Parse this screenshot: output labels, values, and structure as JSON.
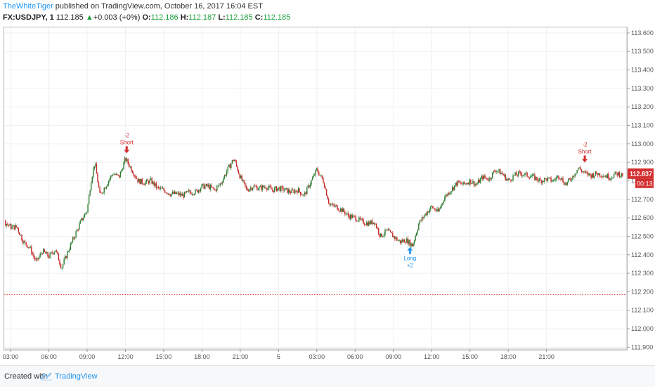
{
  "header": {
    "author": "TheWhiteTiger",
    "published_text": "published on TradingView.com, October 16, 2017 16:04 EST",
    "symbol": "FX:USDJPY, 1",
    "last": "112.185",
    "change_arrow": "▲",
    "change": "+0.003 (+0%)",
    "o_label": "O:",
    "o_value": "112.186",
    "h_label": "H:",
    "h_value": "112.187",
    "l_label": "L:",
    "l_value": "112.185",
    "c_label": "C:",
    "c_value": "112.185"
  },
  "footer": {
    "created_with": "Created with",
    "brand": "TradingView",
    "brand_icon": "tradingview-logo-icon"
  },
  "chart_data": {
    "type": "candlestick",
    "y_ticks": [
      "113.600",
      "113.500",
      "113.400",
      "113.300",
      "113.200",
      "113.100",
      "113.000",
      "112.900",
      "112.800",
      "112.700",
      "112.600",
      "112.500",
      "112.400",
      "112.300",
      "112.200",
      "112.100",
      "112.000",
      "111.900"
    ],
    "x_ticks": [
      "03:00",
      "06:00",
      "09:00",
      "12:00",
      "15:00",
      "18:00",
      "21:00",
      "5",
      "03:00",
      "06:00",
      "09:00",
      "12:00",
      "15:00",
      "18:00",
      "21:00"
    ],
    "ylim": [
      111.89,
      113.63
    ],
    "price_line": {
      "value": "112.837",
      "label": "112.837",
      "countdown": "00:13",
      "color": "#d32f2f"
    },
    "dotted_line": {
      "value": 112.185,
      "color": "#e53935"
    },
    "path": [
      [
        0,
        112.5
      ],
      [
        0.5,
        112.58
      ],
      [
        1.0,
        112.64
      ],
      [
        1.5,
        112.57
      ],
      [
        2.0,
        112.55
      ],
      [
        2.5,
        112.58
      ],
      [
        3.0,
        112.55
      ],
      [
        3.5,
        112.55
      ],
      [
        4.0,
        112.47
      ],
      [
        4.5,
        112.44
      ],
      [
        5.0,
        112.36
      ],
      [
        5.5,
        112.42
      ],
      [
        6.0,
        112.39
      ],
      [
        6.5,
        112.43
      ],
      [
        7.0,
        112.33
      ],
      [
        7.5,
        112.42
      ],
      [
        8.0,
        112.5
      ],
      [
        8.5,
        112.58
      ],
      [
        9.0,
        112.64
      ],
      [
        9.3,
        112.8
      ],
      [
        9.6,
        112.9
      ],
      [
        10.0,
        112.72
      ],
      [
        10.5,
        112.78
      ],
      [
        11.0,
        112.84
      ],
      [
        11.5,
        112.82
      ],
      [
        12.0,
        112.92
      ],
      [
        12.5,
        112.86
      ],
      [
        13.0,
        112.8
      ],
      [
        13.5,
        112.79
      ],
      [
        14.0,
        112.8
      ],
      [
        14.5,
        112.76
      ],
      [
        15.0,
        112.75
      ],
      [
        15.5,
        112.73
      ],
      [
        16.0,
        112.73
      ],
      [
        16.5,
        112.72
      ],
      [
        17.0,
        112.74
      ],
      [
        17.5,
        112.74
      ],
      [
        18.0,
        112.77
      ],
      [
        18.5,
        112.77
      ],
      [
        19.0,
        112.75
      ],
      [
        19.5,
        112.79
      ],
      [
        20.0,
        112.86
      ],
      [
        20.5,
        112.92
      ],
      [
        21.0,
        112.82
      ],
      [
        21.5,
        112.75
      ],
      [
        22.0,
        112.77
      ],
      [
        22.5,
        112.76
      ],
      [
        23.0,
        112.77
      ],
      [
        23.5,
        112.75
      ],
      [
        24.0,
        112.76
      ],
      [
        24.5,
        112.75
      ],
      [
        25.0,
        112.74
      ],
      [
        25.5,
        112.75
      ],
      [
        26.0,
        112.72
      ],
      [
        26.5,
        112.79
      ],
      [
        27.0,
        112.86
      ],
      [
        27.5,
        112.8
      ],
      [
        28.0,
        112.67
      ],
      [
        28.5,
        112.66
      ],
      [
        29.0,
        112.64
      ],
      [
        29.5,
        112.61
      ],
      [
        30.0,
        112.6
      ],
      [
        30.5,
        112.58
      ],
      [
        31.0,
        112.57
      ],
      [
        31.5,
        112.58
      ],
      [
        32.0,
        112.5
      ],
      [
        32.5,
        112.53
      ],
      [
        33.0,
        112.5
      ],
      [
        33.5,
        112.47
      ],
      [
        34.0,
        112.48
      ],
      [
        34.5,
        112.45
      ],
      [
        35.0,
        112.57
      ],
      [
        35.5,
        112.62
      ],
      [
        36.0,
        112.66
      ],
      [
        36.5,
        112.63
      ],
      [
        37.0,
        112.71
      ],
      [
        37.5,
        112.75
      ],
      [
        38.0,
        112.79
      ],
      [
        38.5,
        112.78
      ],
      [
        39.0,
        112.8
      ],
      [
        39.5,
        112.78
      ],
      [
        40.0,
        112.82
      ],
      [
        40.5,
        112.81
      ],
      [
        41.0,
        112.86
      ],
      [
        41.5,
        112.84
      ],
      [
        42.0,
        112.8
      ],
      [
        42.5,
        112.83
      ],
      [
        43.0,
        112.84
      ],
      [
        43.5,
        112.83
      ],
      [
        44.0,
        112.82
      ],
      [
        44.5,
        112.8
      ],
      [
        45.0,
        112.81
      ],
      [
        45.5,
        112.8
      ],
      [
        46.0,
        112.83
      ],
      [
        46.5,
        112.78
      ],
      [
        47.0,
        112.82
      ],
      [
        47.5,
        112.87
      ],
      [
        48.0,
        112.84
      ],
      [
        48.5,
        112.83
      ],
      [
        49.0,
        112.84
      ],
      [
        49.5,
        112.83
      ],
      [
        50.0,
        112.82
      ],
      [
        50.5,
        112.84
      ],
      [
        51.0,
        112.83
      ]
    ],
    "signals": [
      {
        "kind": "short",
        "label": "Short",
        "value_text": "-2",
        "hour": 12.1,
        "price": 112.93,
        "color": "#d32f2f"
      },
      {
        "kind": "long",
        "label": "Long",
        "value_text": "+2",
        "hour": 34.3,
        "price": 112.45,
        "color": "#2196f3"
      },
      {
        "kind": "short",
        "label": "Short",
        "value_text": "-2",
        "hour": 48.0,
        "price": 112.88,
        "color": "#d32f2f"
      }
    ],
    "x_start_hour": 2.5,
    "x_end_hour": 51.3
  }
}
